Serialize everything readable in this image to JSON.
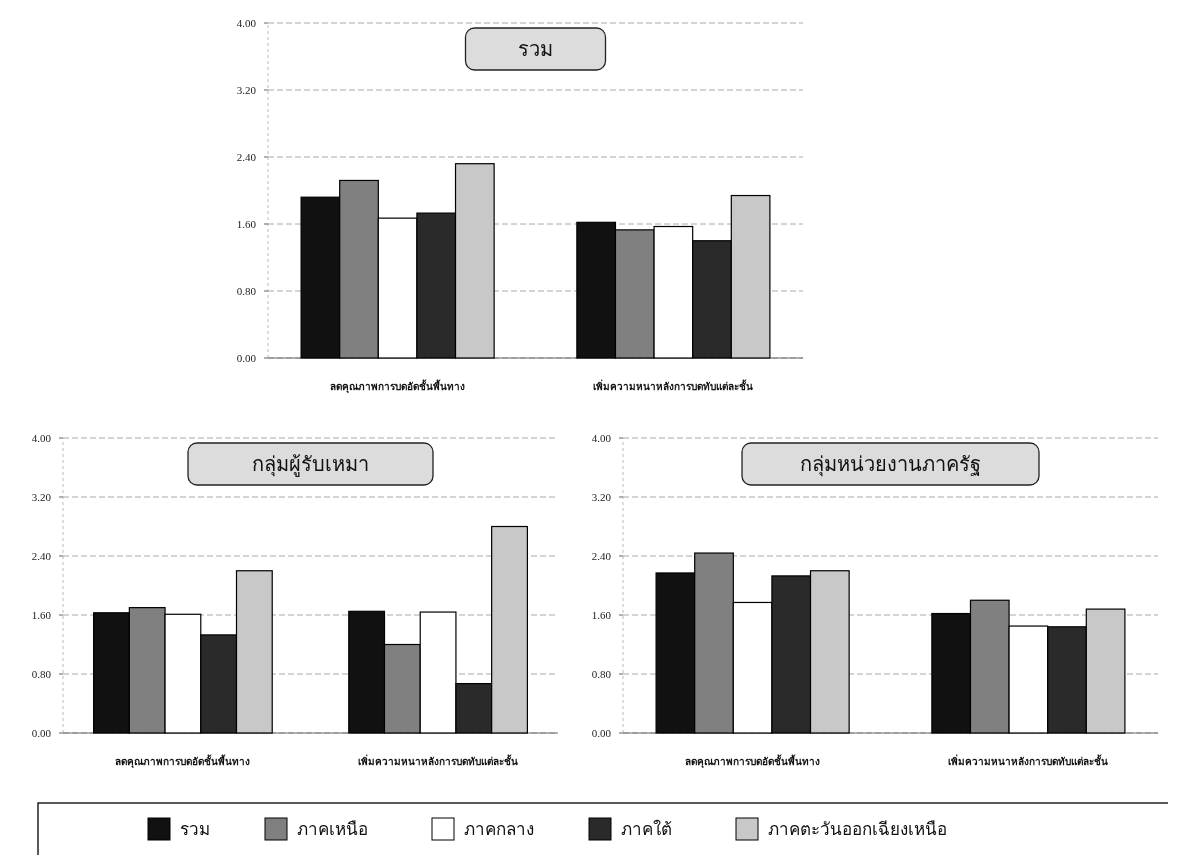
{
  "chart_data": [
    {
      "type": "bar",
      "title": "รวม",
      "legend": "bottom",
      "categories": [
        "ลดคุณภาพการบดอัดชั้นพื้นทาง",
        "เพิ่มความหนาหลังการบดทับแต่ละชั้น"
      ],
      "series": [
        {
          "name": "รวม",
          "color": "#111111",
          "values": [
            1.92,
            1.62
          ]
        },
        {
          "name": "ภาคเหนือ",
          "color": "#808080",
          "values": [
            2.12,
            1.53
          ]
        },
        {
          "name": "ภาคกลาง",
          "color": "#ffffff",
          "values": [
            1.67,
            1.57
          ]
        },
        {
          "name": "ภาคใต้",
          "color": "#2a2a2a",
          "values": [
            1.73,
            1.4
          ]
        },
        {
          "name": "ภาคตะวันออกเฉียงเหนือ",
          "color": "#c8c8c8",
          "values": [
            2.32,
            1.94
          ]
        }
      ],
      "ylim": [
        0,
        4
      ],
      "yticks": [
        {
          "value": 0,
          "label": "0.00"
        },
        {
          "value": 0.8,
          "label": "0.80"
        },
        {
          "value": 1.6,
          "label": "1.60"
        },
        {
          "value": 2.4,
          "label": "2.40"
        },
        {
          "value": 3.2,
          "label": "3.20"
        },
        {
          "value": 4,
          "label": "4.00"
        }
      ],
      "grid": "y"
    },
    {
      "type": "bar",
      "title": "กลุ่มผู้รับเหมา",
      "categories": [
        "ลดคุณภาพการบดอัดชั้นพื้นทาง",
        "เพิ่มความหนาหลังการบดทับแต่ละชั้น"
      ],
      "series": [
        {
          "color": "#111111",
          "values": [
            1.63,
            1.65
          ]
        },
        {
          "color": "#808080",
          "values": [
            1.7,
            1.2
          ]
        },
        {
          "color": "#ffffff",
          "values": [
            1.61,
            1.64
          ]
        },
        {
          "color": "#2a2a2a",
          "values": [
            1.33,
            0.67
          ]
        },
        {
          "color": "#c8c8c8",
          "values": [
            2.2,
            2.8
          ]
        }
      ],
      "ylim": [
        0,
        4
      ],
      "yticks": [
        {
          "value": 0,
          "label": "0.00"
        },
        {
          "value": 0.8,
          "label": "0.80"
        },
        {
          "value": 1.6,
          "label": "1.60"
        },
        {
          "value": 2.4,
          "label": "2.40"
        },
        {
          "value": 3.2,
          "label": "3.20"
        },
        {
          "value": 4,
          "label": "4.00"
        }
      ],
      "grid": "y"
    },
    {
      "type": "bar",
      "title": "กลุ่มหน่วยงานภาครัฐ",
      "categories": [
        "ลดคุณภาพการบดอัดชั้นพื้นทาง",
        "เพิ่มความหนาหลังการบดทับแต่ละชั้น"
      ],
      "series": [
        {
          "color": "#111111",
          "values": [
            2.17,
            1.62
          ]
        },
        {
          "color": "#808080",
          "values": [
            2.44,
            1.8
          ]
        },
        {
          "color": "#ffffff",
          "values": [
            1.77,
            1.45
          ]
        },
        {
          "color": "#2a2a2a",
          "values": [
            2.13,
            1.44
          ]
        },
        {
          "color": "#c8c8c8",
          "values": [
            2.2,
            1.68
          ]
        }
      ],
      "ylim": [
        0,
        4
      ],
      "yticks": [
        {
          "value": 0,
          "label": "0.00"
        },
        {
          "value": 0.8,
          "label": "0.80"
        },
        {
          "value": 1.6,
          "label": "1.60"
        },
        {
          "value": 2.4,
          "label": "2.40"
        },
        {
          "value": 3.2,
          "label": "3.20"
        },
        {
          "value": 4,
          "label": "4.00"
        }
      ],
      "grid": "y"
    }
  ]
}
